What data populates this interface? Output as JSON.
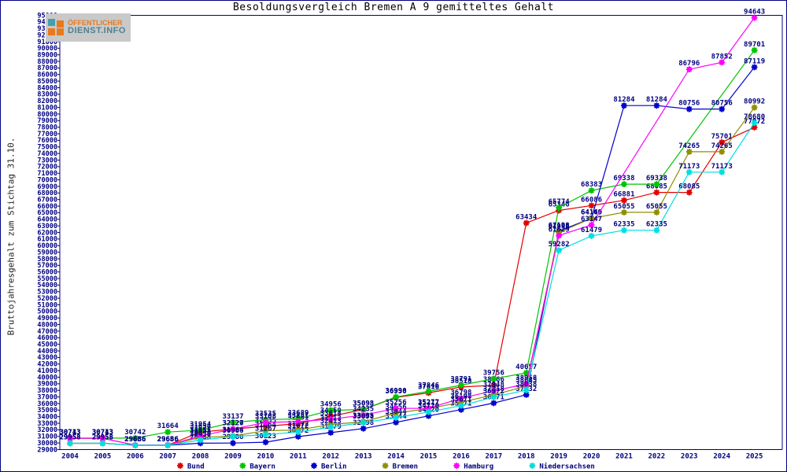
{
  "header": {
    "title": "Besoldungsvergleich Bremen A 9 gemitteltes Gehalt"
  },
  "logo": {
    "line1": "ÖFFENTLICHER",
    "line2": "DIENST.INFO"
  },
  "colors": {
    "axis": "#000080",
    "label_text": "#00007e",
    "background": "#ffffff"
  },
  "chart_data": {
    "type": "line",
    "title": "Besoldungsvergleich Bremen A 9 gemitteltes Gehalt",
    "xlabel": "",
    "ylabel": "Bruttojahresgehalt zum Stichtag 31.10.",
    "x": [
      2004,
      2005,
      2006,
      2007,
      2008,
      2009,
      2010,
      2011,
      2012,
      2013,
      2014,
      2015,
      2016,
      2017,
      2018,
      2019,
      2020,
      2021,
      2022,
      2023,
      2024,
      2025
    ],
    "y_axis": {
      "min": 29000,
      "max": 95000,
      "step": 1000
    },
    "grid": false,
    "legend_position": "bottom",
    "marker": "star8",
    "point_labels": true,
    "series": [
      {
        "name": "Bund",
        "color": "#e60000",
        "values": [
          30713,
          30713,
          29686,
          29686,
          31654,
          32126,
          32535,
          32951,
          34050,
          35093,
          36930,
          37616,
          38518,
          38766,
          63434,
          65346,
          66086,
          66881,
          68085,
          68085,
          75701,
          77972
        ]
      },
      {
        "name": "Bayern",
        "color": "#00c400",
        "values": [
          30743,
          30743,
          30742,
          31664,
          31954,
          33137,
          33535,
          33689,
          34956,
          35098,
          36998,
          37846,
          38791,
          39756,
          40657,
          65774,
          68383,
          69338,
          69338,
          null,
          null,
          89701
        ]
      },
      {
        "name": "Berlin",
        "color": "#0000cc",
        "values": [
          29958,
          29958,
          29656,
          29656,
          29968,
          29988,
          30123,
          30972,
          31579,
          32198,
          33144,
          34120,
          35071,
          36071,
          37332,
          62198,
          64169,
          81284,
          81284,
          80756,
          80756,
          87119
        ]
      },
      {
        "name": "Bremen",
        "color": "#8f8f00",
        "values": [
          29958,
          29958,
          29656,
          29656,
          30858,
          31064,
          31864,
          31972,
          32813,
          33235,
          34556,
          35217,
          36198,
          37318,
          38645,
          61998,
          64140,
          65055,
          65055,
          74265,
          74265,
          80992
        ]
      },
      {
        "name": "Hamburg",
        "color": "#ff00ff",
        "values": [
          30713,
          30713,
          29686,
          29686,
          31051,
          32127,
          33108,
          33251,
          33614,
          34235,
          35256,
          35277,
          36798,
          37948,
          38958,
          61529,
          63147,
          null,
          null,
          86796,
          87852,
          94643
        ]
      },
      {
        "name": "Niedersachsen",
        "color": "#00dede",
        "values": [
          29958,
          29958,
          29656,
          29656,
          30450,
          30988,
          31267,
          31672,
          32413,
          33098,
          33844,
          34720,
          35671,
          36972,
          38038,
          59282,
          61479,
          62335,
          62335,
          71173,
          71173,
          78680
        ]
      }
    ]
  }
}
